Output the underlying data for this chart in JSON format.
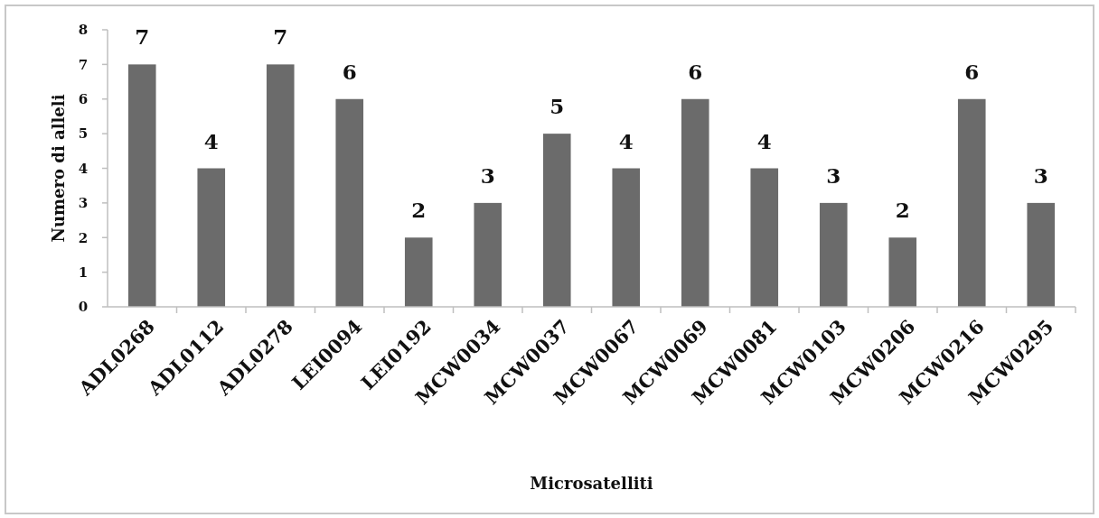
{
  "chart_data": {
    "type": "bar",
    "xlabel": "Microsatelliti",
    "ylabel": "Numero di alleli",
    "categories": [
      "ADL0268",
      "ADL0112",
      "ADL0278",
      "LEI0094",
      "LEI0192",
      "MCW0034",
      "MCW0037",
      "MCW0067",
      "MCW0069",
      "MCW0081",
      "MCW0103",
      "MCW0206",
      "MCW0216",
      "MCW0295"
    ],
    "values": [
      7,
      4,
      7,
      6,
      2,
      3,
      5,
      4,
      6,
      4,
      3,
      2,
      6,
      3
    ],
    "color": "#6b6b6b",
    "ylim": [
      0,
      8
    ],
    "yticks": [
      0,
      1,
      2,
      3,
      4,
      5,
      6,
      7,
      8
    ],
    "data_labels": true,
    "grid": false
  }
}
